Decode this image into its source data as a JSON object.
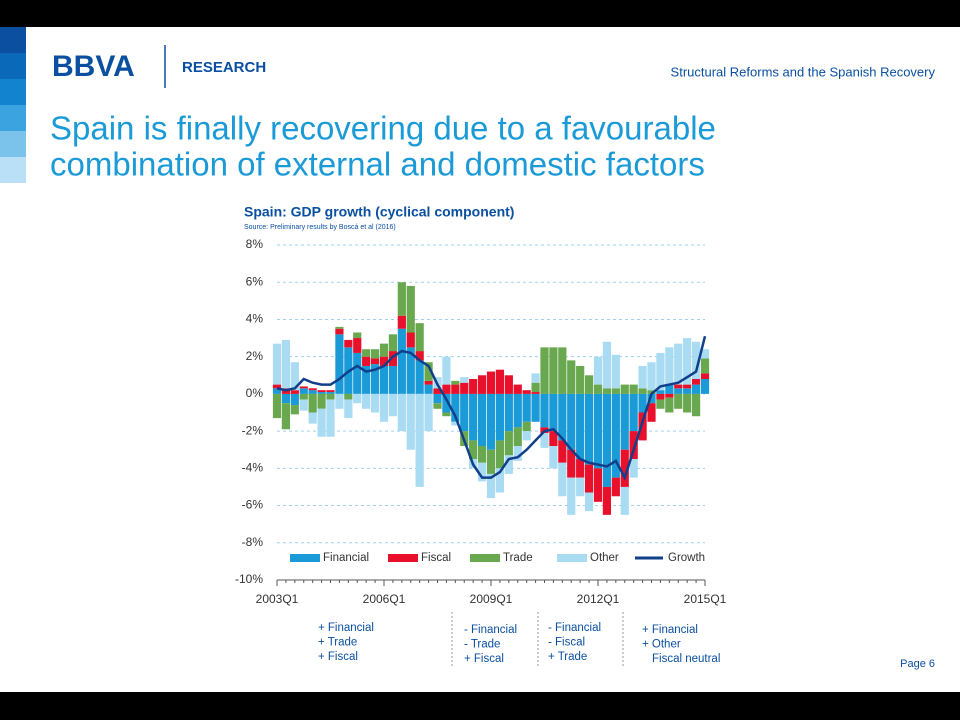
{
  "header": {
    "logo": "BBVA",
    "section": "RESEARCH",
    "presentation": "Structural Reforms and the Spanish Recovery",
    "title_lines": [
      "Spain is finally recovering due to a favourable",
      "combination of external and domestic factors"
    ]
  },
  "footer": {
    "page": "Page 6"
  },
  "annotations": [
    [
      "+ Financial",
      "+ Trade",
      "+ Fiscal"
    ],
    [
      "- Financial",
      "- Trade",
      "+ Fiscal"
    ],
    [
      "- Financial",
      "- Fiscal",
      "+ Trade"
    ],
    [
      "+ Financial",
      "+ Other",
      "Fiscal neutral"
    ]
  ],
  "chart_data": {
    "type": "stacked_bar_line",
    "title": "Spain: GDP growth (cyclical component)",
    "subtitle": "Source: Preliminary results by Boscá et al (2016)",
    "categories": [
      "2003Q1",
      null,
      null,
      null,
      null,
      null,
      null,
      null,
      null,
      null,
      null,
      null,
      "2006Q1",
      null,
      null,
      null,
      null,
      null,
      null,
      null,
      null,
      null,
      null,
      null,
      "2009Q1",
      null,
      null,
      null,
      null,
      null,
      null,
      null,
      null,
      null,
      null,
      null,
      "2012Q1",
      null,
      null,
      null,
      null,
      null,
      null,
      null,
      null,
      null,
      null,
      null,
      "2015Q1"
    ],
    "ylim": [
      -10,
      8
    ],
    "yticks": [
      {
        "value": -10,
        "label": "-10%"
      },
      {
        "value": -8,
        "label": "-8%"
      },
      {
        "value": -6,
        "label": "-6%"
      },
      {
        "value": -4,
        "label": "-4%"
      },
      {
        "value": -2,
        "label": "-2%"
      },
      {
        "value": 0,
        "label": "0%"
      },
      {
        "value": 2,
        "label": "2%"
      },
      {
        "value": 4,
        "label": "4%"
      },
      {
        "value": 6,
        "label": "6%"
      },
      {
        "value": 8,
        "label": "8%"
      }
    ],
    "grid": true,
    "legend": "bottom",
    "series": [
      {
        "name": "Financial",
        "color": "#1a9ad6",
        "values": [
          0.3,
          -0.5,
          -0.6,
          0.3,
          0.2,
          0.1,
          0.1,
          3.2,
          2.5,
          2.2,
          1.5,
          1.6,
          1.5,
          1.5,
          3.5,
          2.5,
          1.8,
          0.5,
          -0.5,
          -1.0,
          -1.5,
          -2.0,
          -2.5,
          -2.8,
          -3.0,
          -2.5,
          -2.0,
          -1.8,
          -1.5,
          -1.5,
          -1.8,
          -2.0,
          -2.5,
          -3.0,
          -3.5,
          -3.8,
          -4.0,
          -5.0,
          -4.5,
          -3.0,
          -2.0,
          -1.0,
          -0.5,
          0.2,
          0.5,
          0.3,
          0.3,
          0.5,
          0.8
        ]
      },
      {
        "name": "Fiscal",
        "color": "#e8102a",
        "values": [
          0.2,
          0.3,
          0.2,
          0.1,
          0.1,
          0.1,
          0.1,
          0.3,
          0.4,
          0.8,
          0.5,
          0.3,
          0.5,
          0.8,
          0.7,
          0.8,
          0.5,
          0.2,
          0.3,
          0.5,
          0.5,
          0.6,
          0.8,
          1.0,
          1.2,
          1.3,
          1.0,
          0.5,
          0.2,
          0.1,
          -0.3,
          -0.8,
          -1.2,
          -1.5,
          -1.0,
          -1.5,
          -1.8,
          -1.5,
          -1.0,
          -2.0,
          -1.5,
          -1.5,
          -1.0,
          -0.3,
          -0.2,
          0.2,
          0.2,
          0.3,
          0.3
        ]
      },
      {
        "name": "Trade",
        "color": "#6aa84f",
        "values": [
          -1.3,
          -1.4,
          -0.5,
          -0.3,
          -1.0,
          -0.8,
          -0.3,
          0.1,
          -0.3,
          0.3,
          0.4,
          0.5,
          0.7,
          0.9,
          1.8,
          2.5,
          1.5,
          1.0,
          -0.3,
          -0.2,
          0.2,
          -0.8,
          -1.0,
          -0.9,
          -1.3,
          -1.5,
          -1.3,
          -1.0,
          -0.5,
          0.5,
          2.5,
          2.5,
          2.5,
          1.8,
          1.5,
          1.0,
          0.5,
          0.3,
          0.3,
          0.5,
          0.5,
          0.3,
          0.2,
          -0.5,
          -0.8,
          -0.8,
          -1.0,
          -1.2,
          0.8
        ]
      },
      {
        "name": "Other",
        "color": "#a9dcf3",
        "values": [
          2.2,
          2.6,
          1.5,
          -0.6,
          -0.6,
          -1.5,
          -2.0,
          -0.8,
          -1.0,
          -0.5,
          -0.8,
          -1.0,
          -1.5,
          -1.2,
          -2.0,
          -3.0,
          -5.0,
          -2.0,
          0.6,
          1.5,
          -0.2,
          0.3,
          -0.5,
          -1.0,
          -1.3,
          -1.3,
          -1.0,
          -0.8,
          -0.5,
          0.5,
          -0.8,
          -1.2,
          -1.8,
          -2.0,
          -1.0,
          -1.0,
          1.5,
          2.5,
          1.8,
          -1.5,
          -1.0,
          1.2,
          1.5,
          2.0,
          2.0,
          2.2,
          2.5,
          2.0,
          0.5
        ]
      },
      {
        "name": "Growth",
        "color": "#123f8a",
        "kind": "line",
        "values": [
          0.3,
          0.2,
          0.3,
          0.8,
          0.6,
          0.5,
          0.5,
          0.8,
          1.2,
          1.5,
          1.2,
          1.3,
          1.5,
          2.0,
          2.3,
          2.2,
          1.8,
          1.5,
          0.5,
          -0.3,
          -1.2,
          -2.5,
          -3.8,
          -4.5,
          -4.5,
          -4.2,
          -3.5,
          -3.4,
          -3.0,
          -2.5,
          -2.0,
          -1.9,
          -2.4,
          -3.0,
          -3.5,
          -3.7,
          -3.8,
          -3.9,
          -3.6,
          -4.5,
          -3.0,
          -1.5,
          0,
          0.4,
          0.5,
          0.6,
          0.9,
          1.2,
          3.1
        ]
      }
    ]
  }
}
